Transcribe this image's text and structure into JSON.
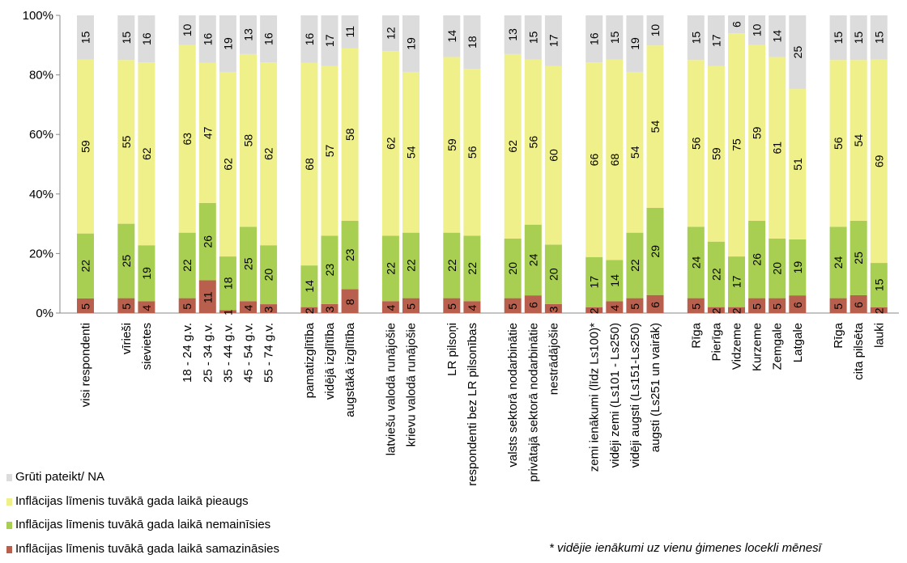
{
  "chart_data": {
    "type": "bar",
    "stacked": true,
    "percent_axis": true,
    "ylim": [
      0,
      100
    ],
    "yticks": [
      "0%",
      "20%",
      "40%",
      "60%",
      "80%",
      "100%"
    ],
    "categories": [
      "visi respondenti",
      "vīrieši",
      "sievietes",
      "18 - 24 g.v.",
      "25 - 34 g.v.",
      "35 - 44 g.v.",
      "45 - 54 g.v.",
      "55 - 74 g.v.",
      "pamatizglītība",
      "vidējā izglītība",
      "augstākā izglītība",
      "latviešu valodā runājošie",
      "krievu valodā runājošie",
      "LR pilsoņi",
      "respondenti bez LR pilsonības",
      "valsts sektorā nodarbinātie",
      "privātajā sektorā nodarbinātie",
      "nestrādājošie",
      "zemi ienākumi (līdz Ls100)*",
      "vidēji zemi (Ls101 - Ls250)",
      "vidēji augsti (Ls151-Ls250)",
      "augsti (Ls251 un vairāk)",
      "Rīga",
      "Pierīga",
      "Vidzeme",
      "Kurzeme",
      "Zemgale",
      "Latgale",
      "Rīga",
      "cita pilsēta",
      "lauki"
    ],
    "groups": [
      1,
      2,
      5,
      3,
      2,
      2,
      3,
      4,
      6,
      3
    ],
    "series": [
      {
        "name": "Inflācijas līmenis tuvākā gada laikā samazināsies",
        "color": "#b8604d",
        "values": [
          5,
          5,
          4,
          5,
          11,
          1,
          4,
          3,
          2,
          3,
          8,
          4,
          5,
          5,
          4,
          5,
          6,
          3,
          2,
          4,
          5,
          6,
          5,
          2,
          2,
          5,
          5,
          6,
          5,
          6,
          2
        ]
      },
      {
        "name": "Inflācijas līmenis tuvākā gada laikā nemainīsies",
        "color": "#a9cf52",
        "values": [
          22,
          25,
          19,
          22,
          26,
          18,
          25,
          20,
          14,
          23,
          23,
          22,
          22,
          22,
          22,
          20,
          24,
          20,
          17,
          14,
          22,
          29,
          24,
          22,
          17,
          26,
          20,
          19,
          24,
          25,
          15
        ]
      },
      {
        "name": "Inflācijas līmenis tuvākā gada laikā pieaugs",
        "color": "#f0f08a",
        "values": [
          59,
          55,
          62,
          63,
          47,
          62,
          58,
          62,
          68,
          57,
          58,
          62,
          54,
          59,
          56,
          62,
          56,
          60,
          66,
          68,
          54,
          54,
          56,
          59,
          75,
          59,
          61,
          51,
          56,
          54,
          69
        ]
      },
      {
        "name": "Grūti pateikt/ NA",
        "color": "#dcdcdc",
        "values": [
          15,
          15,
          16,
          10,
          16,
          19,
          13,
          16,
          16,
          17,
          11,
          12,
          19,
          14,
          18,
          13,
          15,
          17,
          16,
          15,
          19,
          10,
          15,
          17,
          6,
          10,
          14,
          25,
          15,
          15,
          15
        ]
      }
    ]
  },
  "legend": [
    {
      "label": "Grūti pateikt/ NA",
      "color": "#dcdcdc"
    },
    {
      "label": "Inflācijas līmenis tuvākā gada laikā pieaugs",
      "color": "#f0f08a"
    },
    {
      "label": "Inflācijas līmenis tuvākā gada laikā nemainīsies",
      "color": "#a9cf52"
    },
    {
      "label": "Inflācijas līmenis tuvākā gada laikā samazināsies",
      "color": "#b8604d"
    }
  ],
  "footnote": "* vidējie ienākumi uz vienu ģimenes locekli mēnesī"
}
